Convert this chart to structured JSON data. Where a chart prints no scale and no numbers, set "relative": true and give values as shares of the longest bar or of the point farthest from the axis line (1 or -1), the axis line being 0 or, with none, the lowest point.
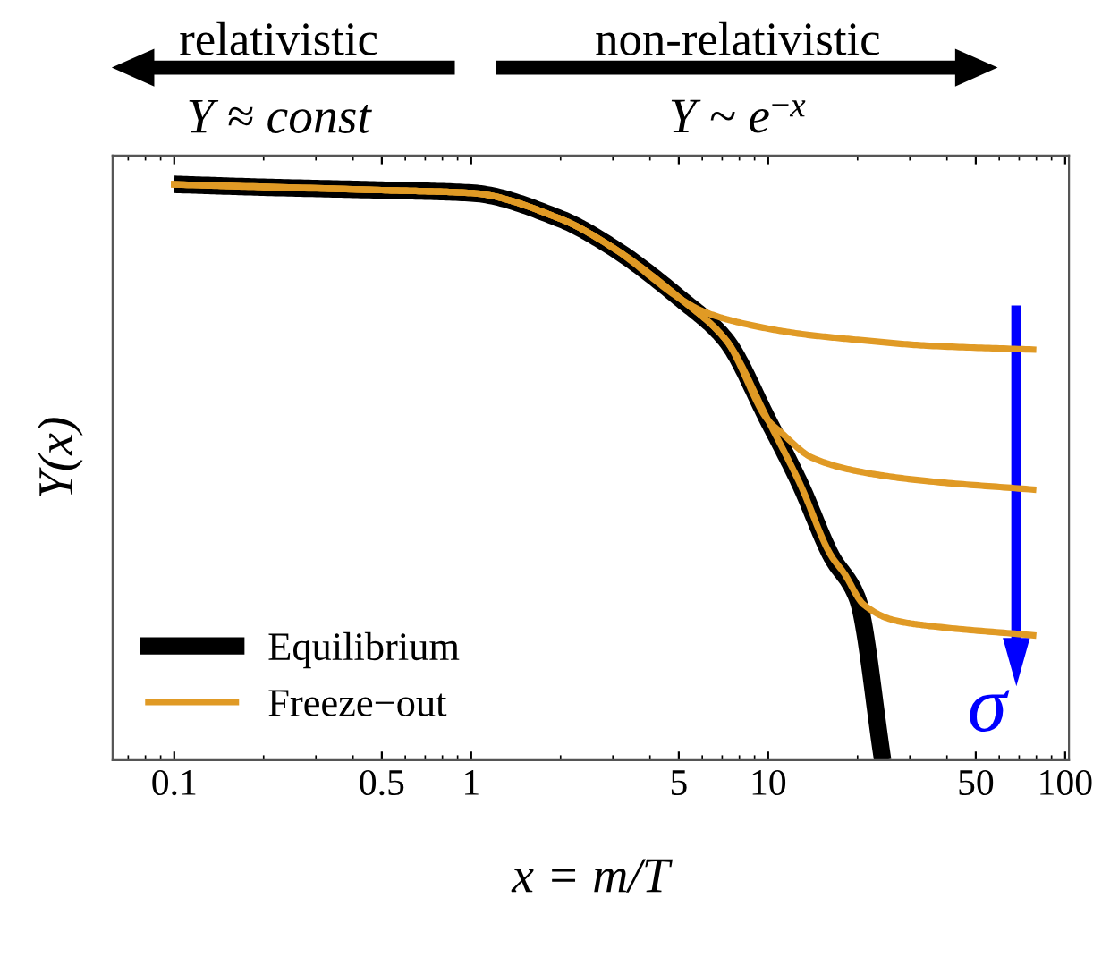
{
  "chart_data": {
    "type": "line",
    "relative": true,
    "log": "x",
    "xlabel": "x = m/T",
    "ylabel": "Y(x)",
    "xlim": [
      0.062,
      103
    ],
    "xticks": [
      0.1,
      0.5,
      1,
      5,
      10,
      50,
      100
    ],
    "grid": false,
    "legend": "bottom left",
    "annotations": [
      "relativistic",
      "Y ≈ const",
      "non-relativistic",
      "Y ~ e$^{−x}$",
      "σ"
    ],
    "series": [
      {
        "name": "Equilibrium",
        "color": "#000000",
        "x": [
          0.1,
          0.2,
          0.5,
          1,
          2,
          3,
          5.1,
          7.2,
          10,
          12.8,
          16.3,
          20,
          24.3
        ],
        "values": [
          1.0,
          0.995,
          0.99,
          0.985,
          0.94,
          0.89,
          0.8,
          0.73,
          0.59,
          0.48,
          0.355,
          0.28,
          0.0
        ]
      },
      {
        "name": "Freeze−out",
        "color": "#e09a25",
        "x": [
          0.1,
          0.2,
          0.5,
          1,
          2,
          3,
          5.1,
          6,
          8,
          13,
          20,
          34,
          78
        ],
        "values": [
          1.0,
          0.995,
          0.99,
          0.985,
          0.94,
          0.89,
          0.8,
          0.78,
          0.76,
          0.74,
          0.73,
          0.72,
          0.713
        ]
      },
      {
        "color": "#e09a25",
        "x": [
          0.1,
          0.5,
          1,
          2,
          3,
          5.1,
          7.2,
          10,
          11,
          14.1,
          20.9,
          34,
          78
        ],
        "values": [
          1.0,
          0.99,
          0.985,
          0.94,
          0.89,
          0.8,
          0.73,
          0.59,
          0.57,
          0.525,
          0.5,
          0.485,
          0.47
        ]
      },
      {
        "color": "#e09a25",
        "x": [
          0.1,
          0.5,
          1,
          2,
          3,
          5.1,
          7.2,
          10,
          12.8,
          16.3,
          18,
          21,
          26.6,
          34,
          78
        ],
        "values": [
          1.0,
          0.99,
          0.985,
          0.94,
          0.89,
          0.8,
          0.73,
          0.59,
          0.48,
          0.355,
          0.325,
          0.27,
          0.243,
          0.234,
          0.217
        ]
      }
    ]
  }
}
